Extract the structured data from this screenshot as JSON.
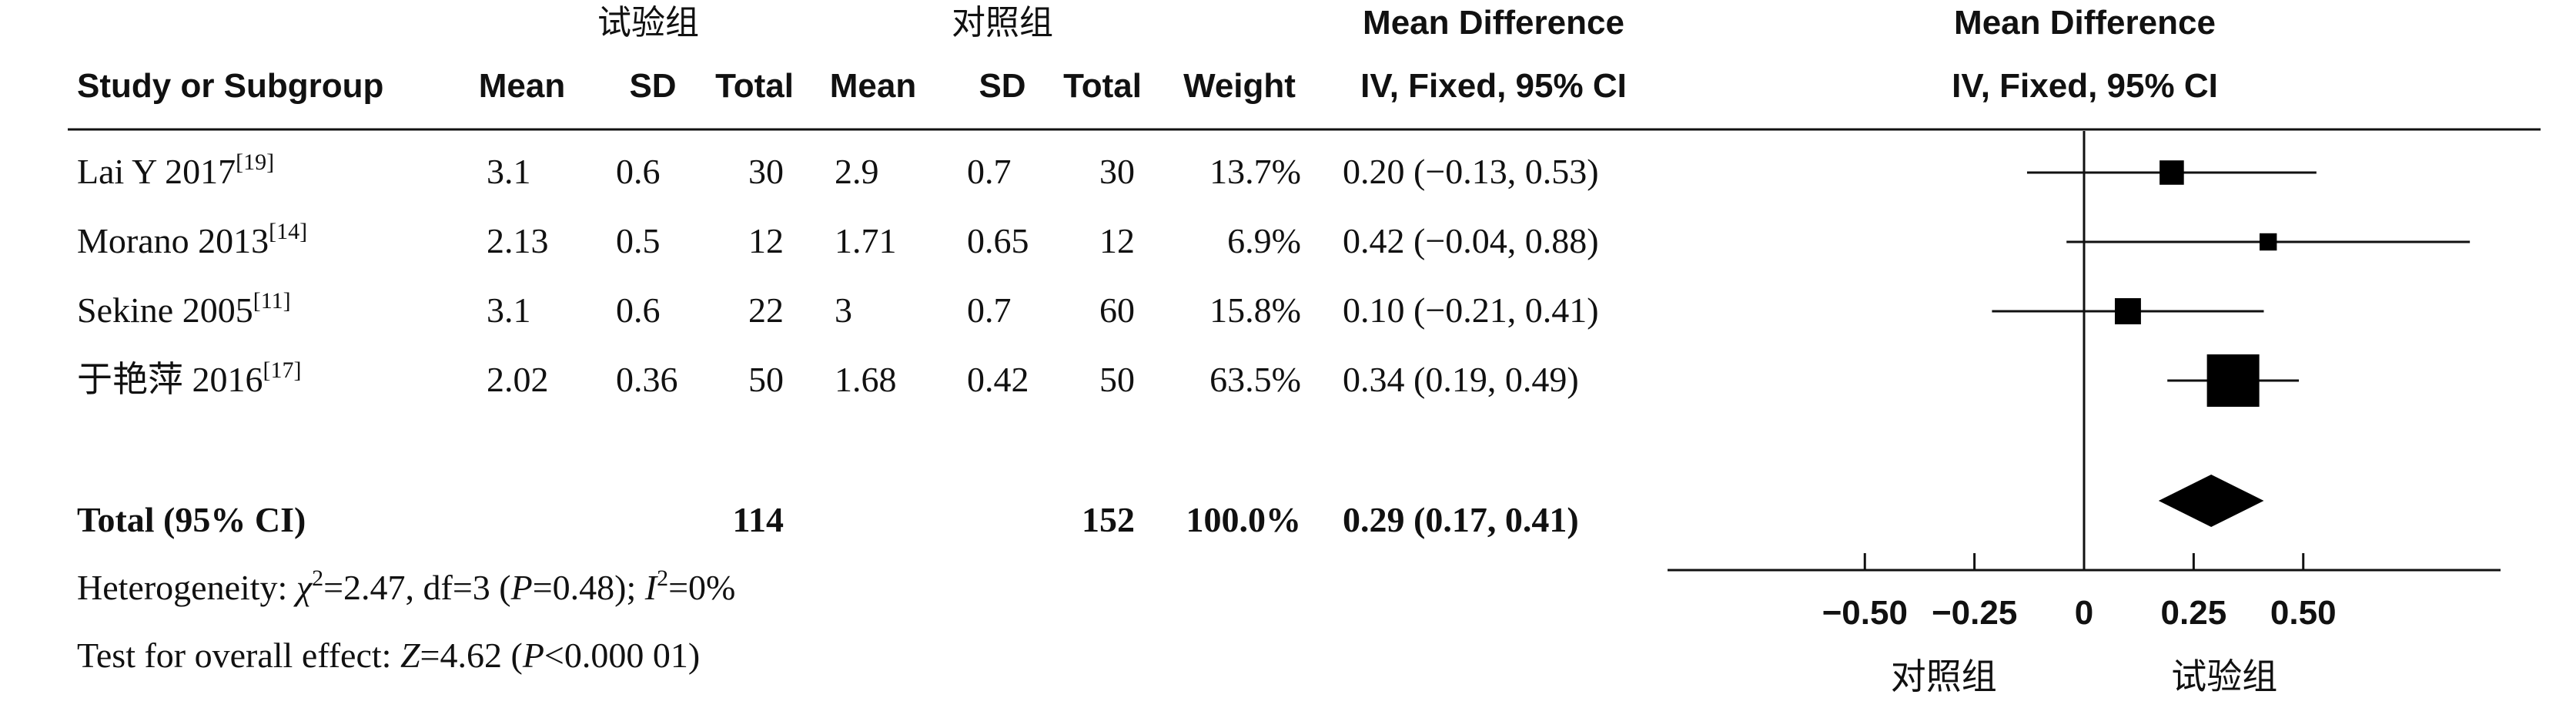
{
  "chart_data": {
    "type": "forest",
    "header": {
      "group1": "试验组",
      "group2": "对照组",
      "md_title": "Mean Difference",
      "md_sub": "IV, Fixed, 95% CI",
      "plot_title": "Mean Difference",
      "plot_sub": "IV, Fixed, 95% CI",
      "cols": {
        "study": "Study or Subgroup",
        "mean1": "Mean",
        "sd1": "SD",
        "total1": "Total",
        "mean2": "Mean",
        "sd2": "SD",
        "total2": "Total",
        "weight": "Weight",
        "ci": "IV, Fixed, 95% CI"
      }
    },
    "studies": [
      {
        "name": "Lai Y 2017",
        "ref": "[19]",
        "mean1": "3.1",
        "sd1": "0.6",
        "total1": "30",
        "mean2": "2.9",
        "sd2": "0.7",
        "total2": "30",
        "weight": "13.7%",
        "ci_text": "0.20 (−0.13, 0.53)",
        "md": 0.2,
        "lo": -0.13,
        "hi": 0.53,
        "w": 13.7
      },
      {
        "name": "Morano 2013",
        "ref": "[14]",
        "mean1": "2.13",
        "sd1": "0.5",
        "total1": "12",
        "mean2": "1.71",
        "sd2": "0.65",
        "total2": "12",
        "weight": "6.9%",
        "ci_text": "0.42 (−0.04, 0.88)",
        "md": 0.42,
        "lo": -0.04,
        "hi": 0.88,
        "w": 6.9
      },
      {
        "name": "Sekine 2005",
        "ref": "[11]",
        "mean1": "3.1",
        "sd1": "0.6",
        "total1": "22",
        "mean2": "3",
        "sd2": "0.7",
        "total2": "60",
        "weight": "15.8%",
        "ci_text": "0.10 (−0.21, 0.41)",
        "md": 0.1,
        "lo": -0.21,
        "hi": 0.41,
        "w": 15.8
      },
      {
        "name": "于艳萍 2016",
        "ref": "[17]",
        "mean1": "2.02",
        "sd1": "0.36",
        "total1": "50",
        "mean2": "1.68",
        "sd2": "0.42",
        "total2": "50",
        "weight": "63.5%",
        "ci_text": "0.34 (0.19, 0.49)",
        "md": 0.34,
        "lo": 0.19,
        "hi": 0.49,
        "w": 63.5
      }
    ],
    "total": {
      "label": "Total (95% CI)",
      "total1": "114",
      "total2": "152",
      "weight": "100.0%",
      "ci_text": "0.29 (0.17, 0.41)",
      "md": 0.29,
      "lo": 0.17,
      "hi": 0.41
    },
    "heterogeneity": {
      "prefix": "Heterogeneity: ",
      "chi_symbol": "χ",
      "chi_sup": "2",
      "chi_rest": "=2.47, df=3 (",
      "p_symbol": "P",
      "p_rest": "=0.48); ",
      "i_symbol": "I",
      "i_sup": "2",
      "i_rest": "=0%"
    },
    "overall": {
      "prefix": "Test for overall effect: ",
      "z_symbol": "Z",
      "z_rest": "=4.62 (",
      "p_symbol": "P",
      "p_rest": "<0.000 01)"
    },
    "axis": {
      "xlim": [
        -0.95,
        0.95
      ],
      "ticks": [
        -0.5,
        -0.25,
        0,
        0.25,
        0.5
      ],
      "tick_labels": [
        "−0.50",
        "−0.25",
        "0",
        "0.25",
        "0.50"
      ],
      "left_label": "对照组",
      "right_label": "试验组"
    }
  }
}
